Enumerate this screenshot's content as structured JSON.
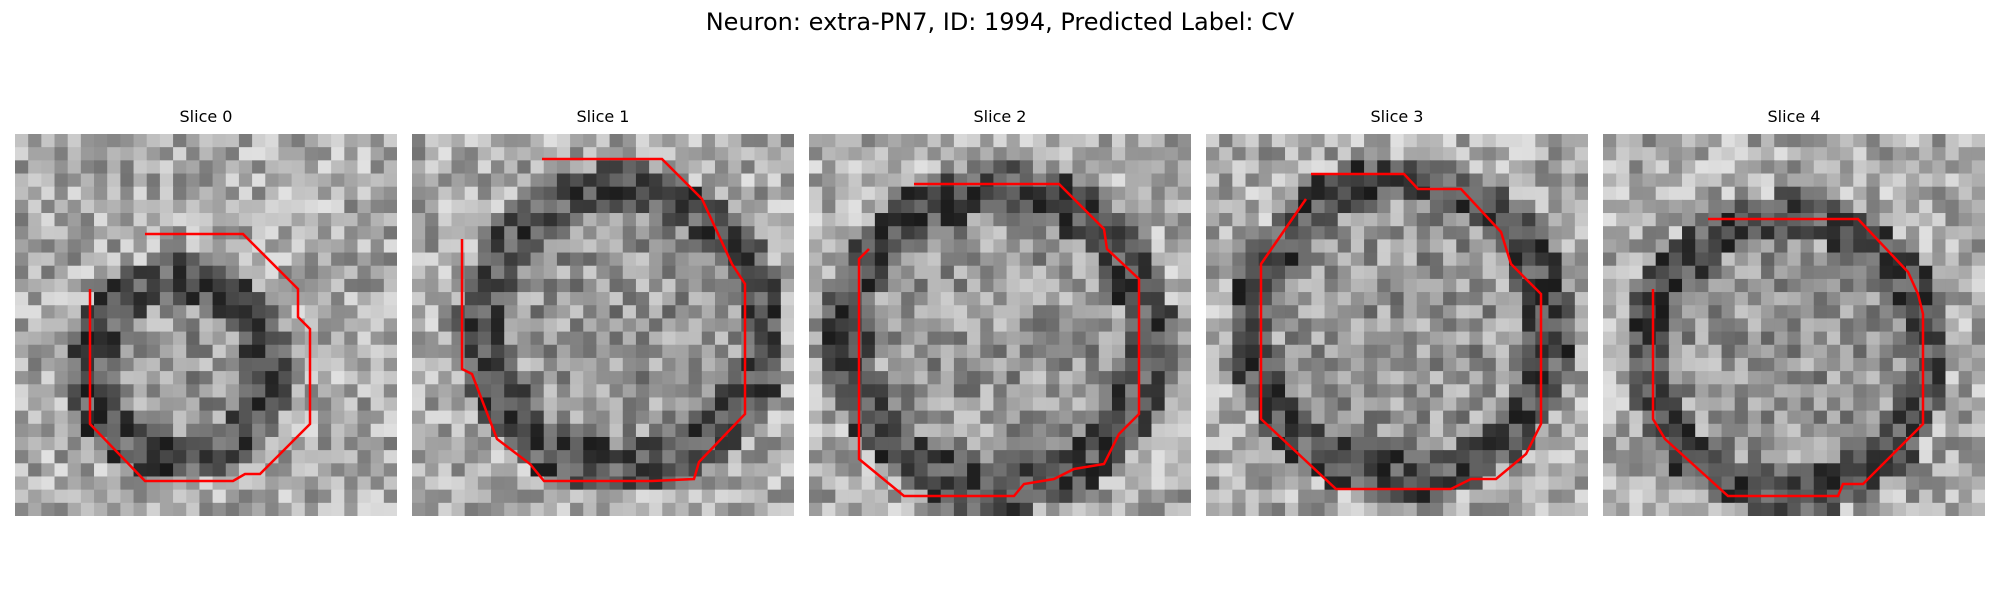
{
  "figure": {
    "title": "Neuron: extra-PN7, ID: 1994, Predicted Label: CV",
    "panels": [
      {
        "title": "Slice 0",
        "contour_color": "#ff0000"
      },
      {
        "title": "Slice 1",
        "contour_color": "#ff0000"
      },
      {
        "title": "Slice 2",
        "contour_color": "#ff0000"
      },
      {
        "title": "Slice 3",
        "contour_color": "#ff0000"
      },
      {
        "title": "Slice 4",
        "contour_color": "#ff0000"
      }
    ]
  }
}
